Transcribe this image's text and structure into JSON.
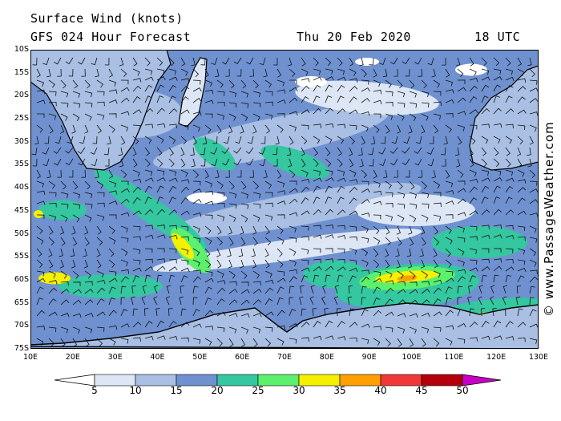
{
  "header": {
    "title": "Surface Wind (knots)",
    "subtitle": "GFS 024 Hour Forecast",
    "date": "Thu 20 Feb 2020",
    "time": "18 UTC"
  },
  "credit": "© www.PassageWeather.com",
  "map": {
    "lat_labels": [
      "10S",
      "15S",
      "20S",
      "25S",
      "30S",
      "35S",
      "40S",
      "45S",
      "50S",
      "55S",
      "60S",
      "65S",
      "70S",
      "75S"
    ],
    "lon_labels": [
      "10E",
      "20E",
      "30E",
      "40E",
      "50E",
      "60E",
      "70E",
      "80E",
      "90E",
      "100E",
      "110E",
      "120E",
      "130E"
    ],
    "lat_range": [
      -10,
      -75
    ],
    "lon_range": [
      10,
      130
    ]
  },
  "colorbar": {
    "labels": [
      "5",
      "10",
      "15",
      "20",
      "25",
      "30",
      "35",
      "40",
      "45",
      "50"
    ],
    "colors": [
      "#ffffff",
      "#dde6f4",
      "#a9bfe3",
      "#6f91d0",
      "#34c7a0",
      "#5cf06c",
      "#f4f000",
      "#ffa000",
      "#f03838",
      "#b4000a",
      "#c800c8"
    ]
  }
}
